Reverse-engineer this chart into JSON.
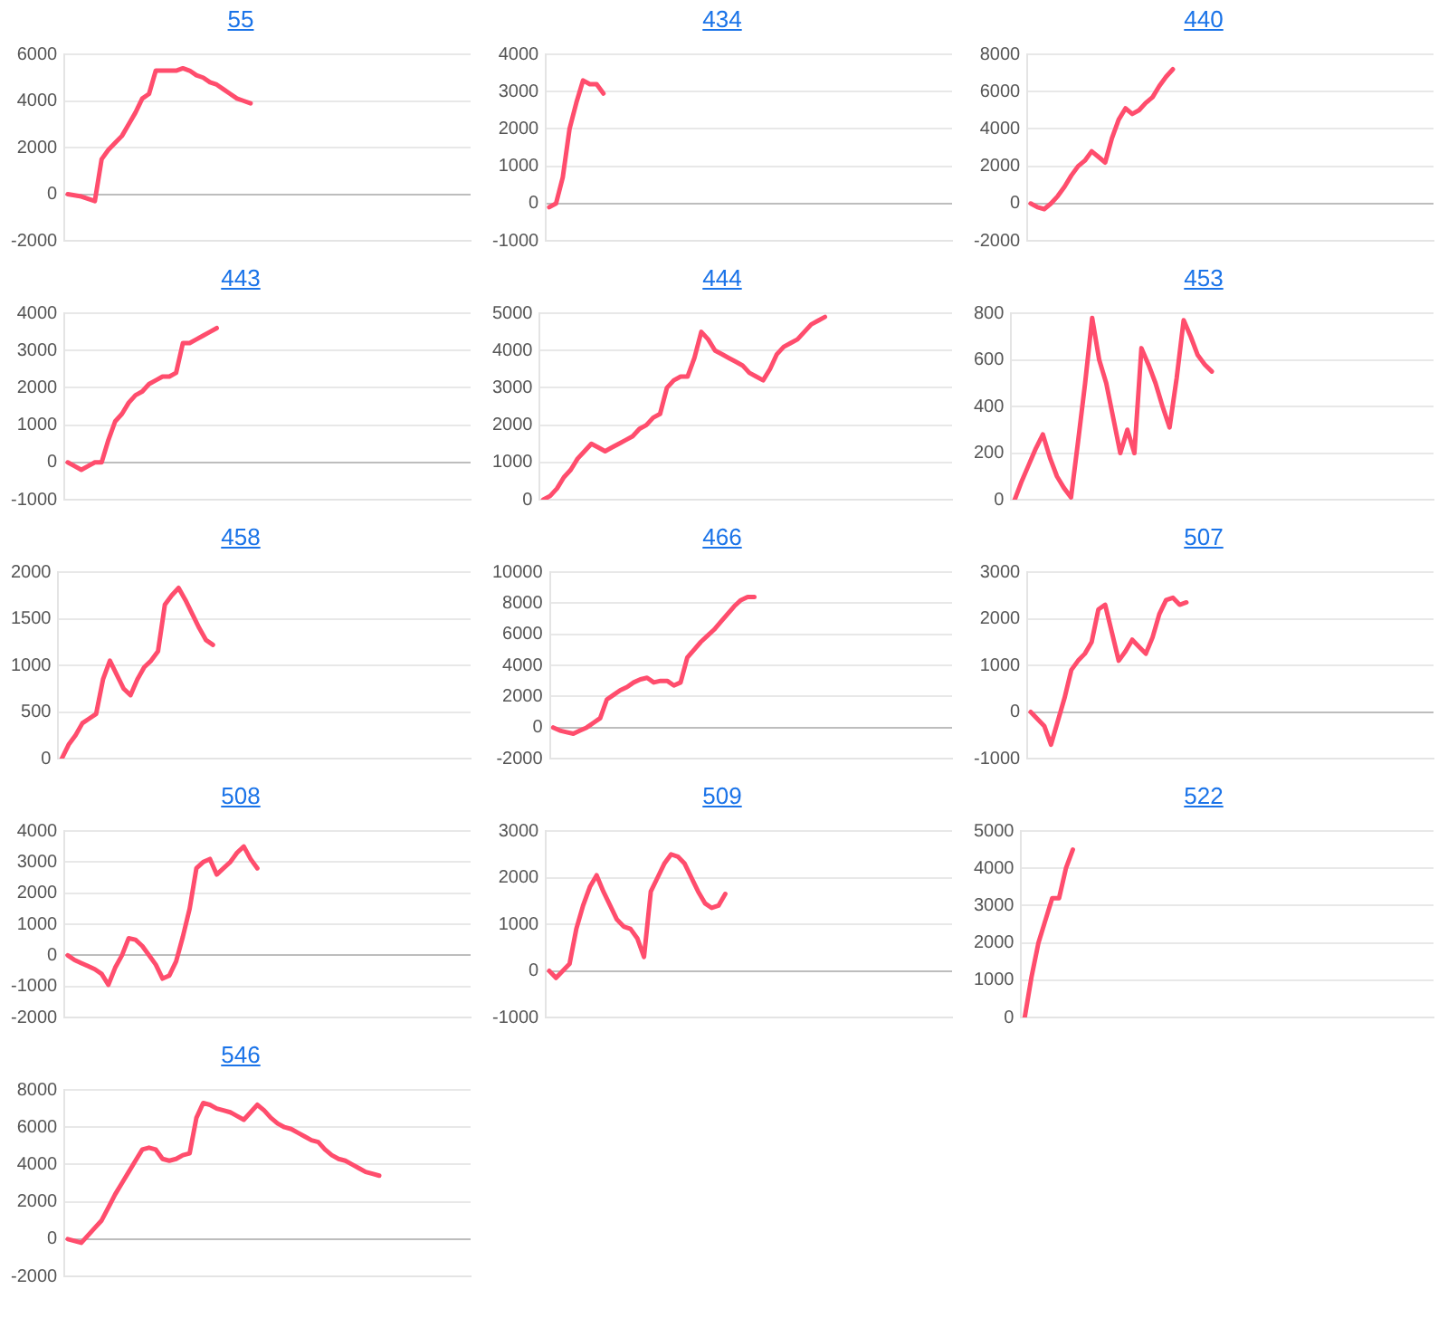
{
  "chart_data": [
    {
      "type": "line",
      "title": "55",
      "categories": [
        null,
        null,
        null,
        null,
        null,
        null,
        null,
        null,
        null,
        null,
        null,
        null,
        null,
        null,
        null,
        null,
        null,
        null,
        null,
        null,
        null,
        null,
        null,
        null,
        null,
        null,
        null,
        null,
        null,
        null,
        null,
        null,
        null,
        null,
        null,
        null,
        null,
        null,
        null,
        null,
        null,
        null,
        null,
        null,
        null,
        null,
        null,
        null,
        null,
        null,
        null,
        null,
        null,
        null,
        null,
        null,
        null,
        null,
        null,
        null
      ],
      "series": [
        {
          "color": "#ff4d6d",
          "values": [
            0,
            -50,
            -100,
            -200,
            -300,
            1500,
            1900,
            2200,
            2500,
            3000,
            3500,
            4100,
            4300,
            5300,
            5300,
            5300,
            5300,
            5400,
            5300,
            5100,
            5000,
            4800,
            4700,
            4500,
            4300,
            4100,
            4000,
            3900,
            null,
            null,
            null,
            null,
            null,
            null,
            null,
            null,
            null,
            null,
            null,
            null,
            null,
            null,
            null,
            null,
            null,
            null,
            null,
            null,
            null,
            null,
            null,
            null,
            null,
            null,
            null,
            null,
            null,
            null,
            null,
            null
          ]
        }
      ],
      "ylim": [
        -2000,
        6000
      ],
      "yticks": [
        -2000,
        0,
        2000,
        4000,
        6000
      ],
      "grid": "y",
      "legend": false,
      "marker": "none",
      "tick_labels": "y"
    },
    {
      "type": "line",
      "title": "434",
      "categories": [
        null,
        null,
        null,
        null,
        null,
        null,
        null,
        null,
        null,
        null,
        null,
        null,
        null,
        null,
        null,
        null,
        null,
        null,
        null,
        null,
        null,
        null,
        null,
        null,
        null,
        null,
        null,
        null,
        null,
        null,
        null,
        null,
        null,
        null,
        null,
        null,
        null,
        null,
        null,
        null,
        null,
        null,
        null,
        null,
        null,
        null,
        null,
        null,
        null,
        null,
        null,
        null,
        null,
        null,
        null,
        null,
        null,
        null,
        null,
        null
      ],
      "series": [
        {
          "color": "#ff4d6d",
          "values": [
            -100,
            0,
            700,
            2000,
            2700,
            3300,
            3200,
            3200,
            2950,
            null,
            null,
            null,
            null,
            null,
            null,
            null,
            null,
            null,
            null,
            null,
            null,
            null,
            null,
            null,
            null,
            null,
            null,
            null,
            null,
            null,
            null,
            null,
            null,
            null,
            null,
            null,
            null,
            null,
            null,
            null,
            null,
            null,
            null,
            null,
            null,
            null,
            null,
            null,
            null,
            null,
            null,
            null,
            null,
            null,
            null,
            null,
            null,
            null,
            null,
            null
          ]
        }
      ],
      "ylim": [
        -1000,
        4000
      ],
      "yticks": [
        -1000,
        0,
        1000,
        2000,
        3000,
        4000
      ],
      "grid": "y",
      "legend": false,
      "marker": "none",
      "tick_labels": "y"
    },
    {
      "type": "line",
      "title": "440",
      "categories": [
        null,
        null,
        null,
        null,
        null,
        null,
        null,
        null,
        null,
        null,
        null,
        null,
        null,
        null,
        null,
        null,
        null,
        null,
        null,
        null,
        null,
        null,
        null,
        null,
        null,
        null,
        null,
        null,
        null,
        null,
        null,
        null,
        null,
        null,
        null,
        null,
        null,
        null,
        null,
        null,
        null,
        null,
        null,
        null,
        null,
        null,
        null,
        null,
        null,
        null,
        null,
        null,
        null,
        null,
        null,
        null,
        null,
        null,
        null,
        null
      ],
      "series": [
        {
          "color": "#ff4d6d",
          "values": [
            0,
            -200,
            -300,
            0,
            400,
            900,
            1500,
            2000,
            2300,
            2800,
            2500,
            2200,
            3500,
            4500,
            5100,
            4800,
            5000,
            5400,
            5700,
            6300,
            6800,
            7200,
            null,
            null,
            null,
            null,
            null,
            null,
            null,
            null,
            null,
            null,
            null,
            null,
            null,
            null,
            null,
            null,
            null,
            null,
            null,
            null,
            null,
            null,
            null,
            null,
            null,
            null,
            null,
            null,
            null,
            null,
            null,
            null,
            null,
            null,
            null,
            null,
            null,
            null
          ]
        }
      ],
      "ylim": [
        -2000,
        8000
      ],
      "yticks": [
        -2000,
        0,
        2000,
        4000,
        6000,
        8000
      ],
      "grid": "y",
      "legend": false,
      "marker": "none",
      "tick_labels": "y"
    },
    {
      "type": "line",
      "title": "443",
      "categories": [
        null,
        null,
        null,
        null,
        null,
        null,
        null,
        null,
        null,
        null,
        null,
        null,
        null,
        null,
        null,
        null,
        null,
        null,
        null,
        null,
        null,
        null,
        null,
        null,
        null,
        null,
        null,
        null,
        null,
        null,
        null,
        null,
        null,
        null,
        null,
        null,
        null,
        null,
        null,
        null,
        null,
        null,
        null,
        null,
        null,
        null,
        null,
        null,
        null,
        null,
        null,
        null,
        null,
        null,
        null,
        null,
        null,
        null,
        null,
        null
      ],
      "series": [
        {
          "color": "#ff4d6d",
          "values": [
            0,
            -100,
            -200,
            -100,
            0,
            0,
            600,
            1100,
            1300,
            1600,
            1800,
            1900,
            2100,
            2200,
            2300,
            2300,
            2400,
            3200,
            3200,
            3300,
            3400,
            3500,
            3600,
            null,
            null,
            null,
            null,
            null,
            null,
            null,
            null,
            null,
            null,
            null,
            null,
            null,
            null,
            null,
            null,
            null,
            null,
            null,
            null,
            null,
            null,
            null,
            null,
            null,
            null,
            null,
            null,
            null,
            null,
            null,
            null,
            null,
            null,
            null,
            null,
            null
          ]
        }
      ],
      "ylim": [
        -1000,
        4000
      ],
      "yticks": [
        -1000,
        0,
        1000,
        2000,
        3000,
        4000
      ],
      "grid": "y",
      "legend": false,
      "marker": "none",
      "tick_labels": "y"
    },
    {
      "type": "line",
      "title": "444",
      "categories": [
        null,
        null,
        null,
        null,
        null,
        null,
        null,
        null,
        null,
        null,
        null,
        null,
        null,
        null,
        null,
        null,
        null,
        null,
        null,
        null,
        null,
        null,
        null,
        null,
        null,
        null,
        null,
        null,
        null,
        null,
        null,
        null,
        null,
        null,
        null,
        null,
        null,
        null,
        null,
        null,
        null,
        null,
        null,
        null,
        null,
        null,
        null,
        null,
        null,
        null,
        null,
        null,
        null,
        null,
        null,
        null,
        null,
        null,
        null,
        null
      ],
      "series": [
        {
          "color": "#ff4d6d",
          "values": [
            0,
            100,
            300,
            600,
            800,
            1100,
            1300,
            1500,
            1400,
            1300,
            1400,
            1500,
            1600,
            1700,
            1900,
            2000,
            2200,
            2300,
            3000,
            3200,
            3300,
            3300,
            3800,
            4500,
            4300,
            4000,
            3900,
            3800,
            3700,
            3600,
            3400,
            3300,
            3200,
            3500,
            3900,
            4100,
            4200,
            4300,
            4500,
            4700,
            4800,
            4900,
            null,
            null,
            null,
            null,
            null,
            null,
            null,
            null,
            null,
            null,
            null,
            null,
            null,
            null,
            null,
            null,
            null,
            null
          ]
        }
      ],
      "ylim": [
        0,
        5000
      ],
      "yticks": [
        0,
        1000,
        2000,
        3000,
        4000,
        5000
      ],
      "grid": "y",
      "legend": false,
      "marker": "none",
      "tick_labels": "y"
    },
    {
      "type": "line",
      "title": "453",
      "categories": [
        null,
        null,
        null,
        null,
        null,
        null,
        null,
        null,
        null,
        null,
        null,
        null,
        null,
        null,
        null,
        null,
        null,
        null,
        null,
        null,
        null,
        null,
        null,
        null,
        null,
        null,
        null,
        null,
        null,
        null,
        null,
        null,
        null,
        null,
        null,
        null,
        null,
        null,
        null,
        null,
        null,
        null,
        null,
        null,
        null,
        null,
        null,
        null,
        null,
        null,
        null,
        null,
        null,
        null,
        null,
        null,
        null,
        null,
        null,
        null
      ],
      "series": [
        {
          "color": "#ff4d6d",
          "values": [
            0,
            80,
            150,
            220,
            280,
            180,
            100,
            50,
            10,
            250,
            500,
            780,
            600,
            500,
            350,
            200,
            300,
            200,
            650,
            580,
            500,
            400,
            310,
            520,
            770,
            700,
            620,
            580,
            550,
            null,
            null,
            null,
            null,
            null,
            null,
            null,
            null,
            null,
            null,
            null,
            null,
            null,
            null,
            null,
            null,
            null,
            null,
            null,
            null,
            null,
            null,
            null,
            null,
            null,
            null,
            null,
            null,
            null,
            null,
            null
          ]
        }
      ],
      "ylim": [
        0,
        800
      ],
      "yticks": [
        0,
        200,
        400,
        600,
        800
      ],
      "grid": "y",
      "legend": false,
      "marker": "none",
      "tick_labels": "y"
    },
    {
      "type": "line",
      "title": "458",
      "categories": [
        null,
        null,
        null,
        null,
        null,
        null,
        null,
        null,
        null,
        null,
        null,
        null,
        null,
        null,
        null,
        null,
        null,
        null,
        null,
        null,
        null,
        null,
        null,
        null,
        null,
        null,
        null,
        null,
        null,
        null,
        null,
        null,
        null,
        null,
        null,
        null,
        null,
        null,
        null,
        null,
        null,
        null,
        null,
        null,
        null,
        null,
        null,
        null,
        null,
        null,
        null,
        null,
        null,
        null,
        null,
        null,
        null,
        null,
        null,
        null
      ],
      "series": [
        {
          "color": "#ff4d6d",
          "values": [
            0,
            150,
            250,
            380,
            430,
            480,
            850,
            1050,
            900,
            750,
            680,
            850,
            980,
            1050,
            1150,
            1650,
            1750,
            1830,
            1700,
            1550,
            1400,
            1270,
            1220,
            null,
            null,
            null,
            null,
            null,
            null,
            null,
            null,
            null,
            null,
            null,
            null,
            null,
            null,
            null,
            null,
            null,
            null,
            null,
            null,
            null,
            null,
            null,
            null,
            null,
            null,
            null,
            null,
            null,
            null,
            null,
            null,
            null,
            null,
            null,
            null,
            null
          ]
        }
      ],
      "ylim": [
        0,
        2000
      ],
      "yticks": [
        0,
        500,
        1000,
        1500,
        2000
      ],
      "grid": "y",
      "legend": false,
      "marker": "none",
      "tick_labels": "y"
    },
    {
      "type": "line",
      "title": "466",
      "categories": [
        null,
        null,
        null,
        null,
        null,
        null,
        null,
        null,
        null,
        null,
        null,
        null,
        null,
        null,
        null,
        null,
        null,
        null,
        null,
        null,
        null,
        null,
        null,
        null,
        null,
        null,
        null,
        null,
        null,
        null,
        null,
        null,
        null,
        null,
        null,
        null,
        null,
        null,
        null,
        null,
        null,
        null,
        null,
        null,
        null,
        null,
        null,
        null,
        null,
        null,
        null,
        null,
        null,
        null,
        null,
        null,
        null,
        null,
        null,
        null
      ],
      "series": [
        {
          "color": "#ff4d6d",
          "values": [
            0,
            -200,
            -300,
            -400,
            -200,
            0,
            300,
            600,
            1800,
            2100,
            2400,
            2600,
            2900,
            3100,
            3200,
            2900,
            3000,
            3000,
            2700,
            2900,
            4500,
            5000,
            5500,
            5900,
            6300,
            6800,
            7300,
            7800,
            8200,
            8400,
            8400,
            null,
            null,
            null,
            null,
            null,
            null,
            null,
            null,
            null,
            null,
            null,
            null,
            null,
            null,
            null,
            null,
            null,
            null,
            null,
            null,
            null,
            null,
            null,
            null,
            null,
            null,
            null,
            null,
            null
          ]
        }
      ],
      "ylim": [
        -2000,
        10000
      ],
      "yticks": [
        -2000,
        0,
        2000,
        4000,
        6000,
        8000,
        10000
      ],
      "grid": "y",
      "legend": false,
      "marker": "none",
      "tick_labels": "y"
    },
    {
      "type": "line",
      "title": "507",
      "categories": [
        null,
        null,
        null,
        null,
        null,
        null,
        null,
        null,
        null,
        null,
        null,
        null,
        null,
        null,
        null,
        null,
        null,
        null,
        null,
        null,
        null,
        null,
        null,
        null,
        null,
        null,
        null,
        null,
        null,
        null,
        null,
        null,
        null,
        null,
        null,
        null,
        null,
        null,
        null,
        null,
        null,
        null,
        null,
        null,
        null,
        null,
        null,
        null,
        null,
        null,
        null,
        null,
        null,
        null,
        null,
        null,
        null,
        null,
        null,
        null
      ],
      "series": [
        {
          "color": "#ff4d6d",
          "values": [
            0,
            -150,
            -300,
            -700,
            -200,
            300,
            900,
            1100,
            1250,
            1500,
            2200,
            2300,
            1700,
            1100,
            1300,
            1550,
            1400,
            1250,
            1600,
            2100,
            2400,
            2450,
            2300,
            2350,
            null,
            null,
            null,
            null,
            null,
            null,
            null,
            null,
            null,
            null,
            null,
            null,
            null,
            null,
            null,
            null,
            null,
            null,
            null,
            null,
            null,
            null,
            null,
            null,
            null,
            null,
            null,
            null,
            null,
            null,
            null,
            null,
            null,
            null,
            null,
            null
          ]
        }
      ],
      "ylim": [
        -1000,
        3000
      ],
      "yticks": [
        -1000,
        0,
        1000,
        2000,
        3000
      ],
      "grid": "y",
      "legend": false,
      "marker": "none",
      "tick_labels": "y"
    },
    {
      "type": "line",
      "title": "508",
      "categories": [
        null,
        null,
        null,
        null,
        null,
        null,
        null,
        null,
        null,
        null,
        null,
        null,
        null,
        null,
        null,
        null,
        null,
        null,
        null,
        null,
        null,
        null,
        null,
        null,
        null,
        null,
        null,
        null,
        null,
        null,
        null,
        null,
        null,
        null,
        null,
        null,
        null,
        null,
        null,
        null,
        null,
        null,
        null,
        null,
        null,
        null,
        null,
        null,
        null,
        null,
        null,
        null,
        null,
        null,
        null,
        null,
        null,
        null,
        null,
        null
      ],
      "series": [
        {
          "color": "#ff4d6d",
          "values": [
            0,
            -150,
            -250,
            -350,
            -450,
            -600,
            -950,
            -400,
            0,
            550,
            500,
            300,
            0,
            -300,
            -750,
            -650,
            -200,
            600,
            1500,
            2800,
            3000,
            3100,
            2600,
            2800,
            3000,
            3300,
            3500,
            3100,
            2800,
            null,
            null,
            null,
            null,
            null,
            null,
            null,
            null,
            null,
            null,
            null,
            null,
            null,
            null,
            null,
            null,
            null,
            null,
            null,
            null,
            null,
            null,
            null,
            null,
            null,
            null,
            null,
            null,
            null,
            null,
            null
          ]
        }
      ],
      "ylim": [
        -2000,
        4000
      ],
      "yticks": [
        -2000,
        -1000,
        0,
        1000,
        2000,
        3000,
        4000
      ],
      "grid": "y",
      "legend": false,
      "marker": "none",
      "tick_labels": "y"
    },
    {
      "type": "line",
      "title": "509",
      "categories": [
        null,
        null,
        null,
        null,
        null,
        null,
        null,
        null,
        null,
        null,
        null,
        null,
        null,
        null,
        null,
        null,
        null,
        null,
        null,
        null,
        null,
        null,
        null,
        null,
        null,
        null,
        null,
        null,
        null,
        null,
        null,
        null,
        null,
        null,
        null,
        null,
        null,
        null,
        null,
        null,
        null,
        null,
        null,
        null,
        null,
        null,
        null,
        null,
        null,
        null,
        null,
        null,
        null,
        null,
        null,
        null,
        null,
        null,
        null,
        null
      ],
      "series": [
        {
          "color": "#ff4d6d",
          "values": [
            0,
            -150,
            0,
            150,
            900,
            1400,
            1800,
            2050,
            1700,
            1400,
            1100,
            950,
            900,
            700,
            300,
            1700,
            2000,
            2300,
            2500,
            2450,
            2300,
            2000,
            1700,
            1450,
            1350,
            1400,
            1650,
            null,
            null,
            null,
            null,
            null,
            null,
            null,
            null,
            null,
            null,
            null,
            null,
            null,
            null,
            null,
            null,
            null,
            null,
            null,
            null,
            null,
            null,
            null,
            null,
            null,
            null,
            null,
            null,
            null,
            null,
            null,
            null,
            null
          ]
        }
      ],
      "ylim": [
        -1000,
        3000
      ],
      "yticks": [
        -1000,
        0,
        1000,
        2000,
        3000
      ],
      "grid": "y",
      "legend": false,
      "marker": "none",
      "tick_labels": "y"
    },
    {
      "type": "line",
      "title": "522",
      "categories": [
        null,
        null,
        null,
        null,
        null,
        null,
        null,
        null,
        null,
        null,
        null,
        null,
        null,
        null,
        null,
        null,
        null,
        null,
        null,
        null,
        null,
        null,
        null,
        null,
        null,
        null,
        null,
        null,
        null,
        null,
        null,
        null,
        null,
        null,
        null,
        null,
        null,
        null,
        null,
        null,
        null,
        null,
        null,
        null,
        null,
        null,
        null,
        null,
        null,
        null,
        null,
        null,
        null,
        null,
        null,
        null,
        null,
        null,
        null,
        null
      ],
      "series": [
        {
          "color": "#ff4d6d",
          "values": [
            0,
            1100,
            2000,
            2600,
            3200,
            3200,
            4000,
            4500,
            null,
            null,
            null,
            null,
            null,
            null,
            null,
            null,
            null,
            null,
            null,
            null,
            null,
            null,
            null,
            null,
            null,
            null,
            null,
            null,
            null,
            null,
            null,
            null,
            null,
            null,
            null,
            null,
            null,
            null,
            null,
            null,
            null,
            null,
            null,
            null,
            null,
            null,
            null,
            null,
            null,
            null,
            null,
            null,
            null,
            null,
            null,
            null,
            null,
            null,
            null,
            null
          ]
        }
      ],
      "ylim": [
        0,
        5000
      ],
      "yticks": [
        0,
        1000,
        2000,
        3000,
        4000,
        5000
      ],
      "grid": "y",
      "legend": false,
      "marker": "none",
      "tick_labels": "y"
    },
    {
      "type": "line",
      "title": "546",
      "categories": [
        null,
        null,
        null,
        null,
        null,
        null,
        null,
        null,
        null,
        null,
        null,
        null,
        null,
        null,
        null,
        null,
        null,
        null,
        null,
        null,
        null,
        null,
        null,
        null,
        null,
        null,
        null,
        null,
        null,
        null,
        null,
        null,
        null,
        null,
        null,
        null,
        null,
        null,
        null,
        null,
        null,
        null,
        null,
        null,
        null,
        null,
        null,
        null,
        null,
        null,
        null,
        null,
        null,
        null,
        null,
        null,
        null,
        null,
        null,
        null
      ],
      "series": [
        {
          "color": "#ff4d6d",
          "values": [
            0,
            -100,
            -200,
            200,
            600,
            1000,
            1700,
            2400,
            3000,
            3600,
            4200,
            4800,
            4900,
            4800,
            4300,
            4200,
            4300,
            4500,
            4600,
            6500,
            7300,
            7200,
            7000,
            6900,
            6800,
            6600,
            6400,
            6800,
            7200,
            6900,
            6500,
            6200,
            6000,
            5900,
            5700,
            5500,
            5300,
            5200,
            4800,
            4500,
            4300,
            4200,
            4000,
            3800,
            3600,
            3500,
            3400,
            null,
            null,
            null,
            null,
            null,
            null,
            null,
            null,
            null,
            null,
            null,
            null,
            null
          ]
        }
      ],
      "ylim": [
        -2000,
        8000
      ],
      "yticks": [
        -2000,
        0,
        2000,
        4000,
        6000,
        8000
      ],
      "grid": "y",
      "legend": false,
      "marker": "none",
      "tick_labels": "y"
    }
  ]
}
